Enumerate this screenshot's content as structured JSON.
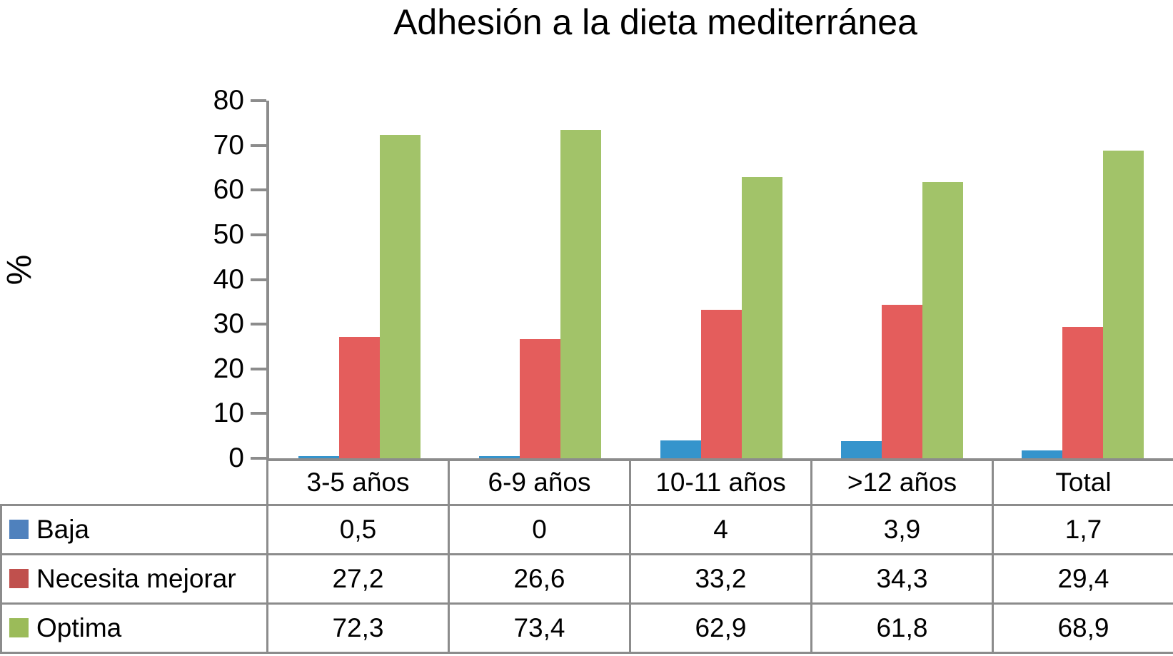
{
  "title": "Adhesión a la dieta mediterránea",
  "y_axis": {
    "label": "%",
    "ticks": [
      80,
      70,
      60,
      50,
      40,
      30,
      20,
      10,
      0
    ],
    "max": 80
  },
  "colors": {
    "axis": "#8C8C8C",
    "table_border": "#8C8C8C",
    "bar_blue": "#3594CC",
    "bar_red": "#E45D5C",
    "bar_green": "#A2C369",
    "legend_blue": "#4F81BD",
    "legend_red": "#C0504D",
    "legend_green": "#9BBB59"
  },
  "chart_data": {
    "type": "bar",
    "title": "Adhesión a la dieta mediterránea",
    "categories": [
      "3-5 años",
      "6-9 años",
      "10-11 años",
      ">12 años",
      "Total"
    ],
    "series": [
      {
        "name": "Baja",
        "color": "#3594CC",
        "legend_color": "#4F81BD",
        "values": [
          0.5,
          0,
          4,
          3.9,
          1.7
        ],
        "labels": [
          "0,5",
          "0",
          "4",
          "3,9",
          "1,7"
        ]
      },
      {
        "name": "Necesita mejorar",
        "color": "#E45D5C",
        "legend_color": "#C0504D",
        "values": [
          27.2,
          26.6,
          33.2,
          34.3,
          29.4
        ],
        "labels": [
          "27,2",
          "26,6",
          "33,2",
          "34,3",
          "29,4"
        ]
      },
      {
        "name": "Optima",
        "color": "#A2C369",
        "legend_color": "#9BBB59",
        "values": [
          72.3,
          73.4,
          62.9,
          61.8,
          68.9
        ],
        "labels": [
          "72,3",
          "73,4",
          "62,9",
          "61,8",
          "68,9"
        ]
      }
    ],
    "xlabel": "",
    "ylabel": "%",
    "ylim": [
      0,
      80
    ],
    "grid": false,
    "legend_position": "table-left"
  }
}
